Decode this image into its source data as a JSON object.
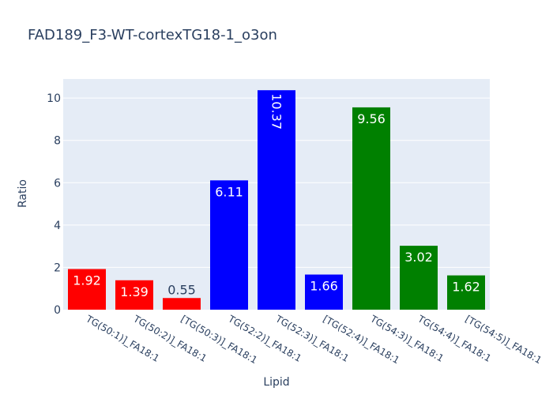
{
  "chart_data": {
    "type": "bar",
    "title": "FAD189_F3-WT-cortexTG18-1_o3on",
    "xlabel": "Lipid",
    "ylabel": "Ratio",
    "ylim": [
      0,
      10.9
    ],
    "yticks": [
      0,
      2,
      4,
      6,
      8,
      10
    ],
    "grid": true,
    "legend": "none",
    "categories": [
      "TG(50:1)]_FA18:1",
      "TG(50:2)]_FA18:1",
      "[TG(50:3)]_FA18:1",
      "TG(52:2)]_FA18:1",
      "TG(52:3)]_FA18:1",
      "[TG(52:4)]_FA18:1",
      "TG(54:3)]_FA18:1",
      "TG(54:4)]_FA18:1",
      "[TG(54:5)]_FA18:1"
    ],
    "values": [
      1.92,
      1.39,
      0.55,
      6.11,
      10.37,
      1.66,
      9.56,
      3.02,
      1.62
    ],
    "value_labels": [
      "1.92",
      "1.39",
      "0.55",
      "6.11",
      "10.37",
      "1.66",
      "9.56",
      "3.02",
      "1.62"
    ],
    "colors": [
      "#ff0000",
      "#ff0000",
      "#ff0000",
      "#0000ff",
      "#0000ff",
      "#0000ff",
      "#008000",
      "#008000",
      "#008000"
    ],
    "plot_background": "#e5ecf6",
    "text_color": "#2a3f5f"
  }
}
